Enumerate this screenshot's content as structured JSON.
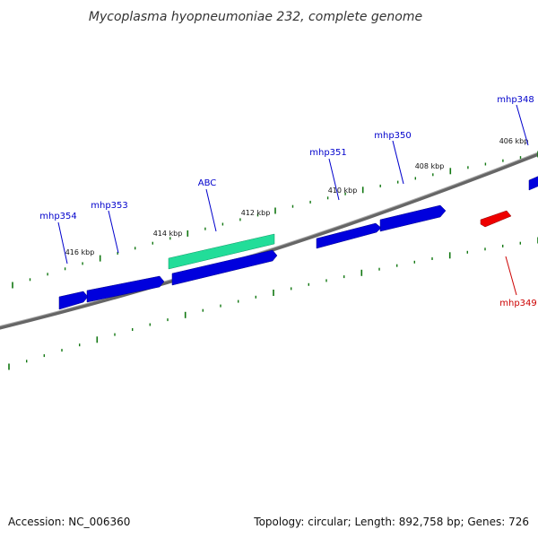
{
  "title": "Mycoplasma hyopneumoniae 232, complete genome",
  "footer": {
    "accession": "Accession: NC_006360",
    "summary": "Topology: circular; Length: 892,758 bp; Genes: 726"
  },
  "colors": {
    "forward_gene": "#0000ee",
    "reverse_gene": "#ee0000",
    "highlight_gene": "#22dd99",
    "backbone": "#777777",
    "tick": "#117711"
  },
  "ticks": [
    {
      "label": "406 kbp"
    },
    {
      "label": "408 kbp"
    },
    {
      "label": "410 kbp"
    },
    {
      "label": "412 kbp"
    },
    {
      "label": "414 kbp"
    },
    {
      "label": "416 kbp"
    }
  ],
  "genes": [
    {
      "label": "mhp348",
      "strand": "forward"
    },
    {
      "label": "mhp349",
      "strand": "reverse"
    },
    {
      "label": "mhp350",
      "strand": "forward"
    },
    {
      "label": "mhp351",
      "strand": "forward"
    },
    {
      "label": "ABC",
      "strand": "forward",
      "highlight": true
    },
    {
      "label": "mhp353",
      "strand": "forward"
    },
    {
      "label": "mhp354",
      "strand": "forward"
    }
  ]
}
